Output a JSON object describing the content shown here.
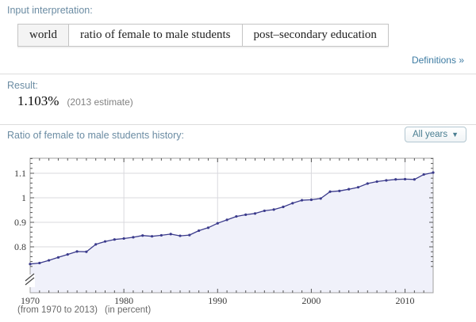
{
  "sections": {
    "input_interpretation": {
      "heading": "Input interpretation:",
      "cells": [
        "world",
        "ratio of female to male students",
        "post–secondary education"
      ],
      "definitions_link": "Definitions »"
    },
    "result": {
      "heading": "Result:",
      "value": "1.103%",
      "note": "(2013 estimate)"
    },
    "history": {
      "heading": "Ratio of female to male students history:",
      "dropdown_label": "All years",
      "caption_range": "(from 1970 to 2013)",
      "caption_unit": "(in percent)"
    }
  },
  "icons": {
    "dropdown_caret": "▼"
  },
  "colors": {
    "heading": "#6b8ca3",
    "link": "#3e7ca3",
    "line": "#3b3b8c",
    "fill": "#f0f1fa",
    "grid": "#d9d9de",
    "frame": "#a0a0a0",
    "axis_label": "#3a3a3a",
    "caption": "#696969",
    "button_text": "#4a7e91"
  },
  "chart_data": {
    "type": "area",
    "title": "Ratio of female to male students history",
    "xlabel": "",
    "ylabel": "",
    "units": "percent",
    "years": [
      1970,
      1971,
      1972,
      1973,
      1974,
      1975,
      1976,
      1977,
      1978,
      1979,
      1980,
      1981,
      1982,
      1983,
      1984,
      1985,
      1986,
      1987,
      1988,
      1989,
      1990,
      1991,
      1992,
      1993,
      1994,
      1995,
      1996,
      1997,
      1998,
      1999,
      2000,
      2001,
      2002,
      2003,
      2004,
      2005,
      2006,
      2007,
      2008,
      2009,
      2010,
      2011,
      2012,
      2013
    ],
    "values": [
      0.73,
      0.734,
      0.745,
      0.757,
      0.769,
      0.781,
      0.78,
      0.81,
      0.822,
      0.83,
      0.834,
      0.839,
      0.846,
      0.843,
      0.847,
      0.852,
      0.845,
      0.848,
      0.866,
      0.878,
      0.896,
      0.91,
      0.924,
      0.931,
      0.936,
      0.947,
      0.952,
      0.963,
      0.978,
      0.99,
      0.992,
      0.997,
      1.025,
      1.028,
      1.035,
      1.043,
      1.058,
      1.066,
      1.071,
      1.075,
      1.076,
      1.075,
      1.095,
      1.103
    ],
    "x_ticks": [
      1970,
      1980,
      1990,
      2000,
      2010
    ],
    "y_ticks": [
      0.8,
      0.9,
      1.0,
      1.1
    ],
    "y_tick_labels": [
      "0.8",
      "0.9",
      "1",
      "1.1"
    ],
    "xlim": [
      1970,
      2013
    ],
    "ylim": [
      0.72,
      1.16
    ],
    "grid": true,
    "axis_break": true,
    "legend": "none"
  }
}
